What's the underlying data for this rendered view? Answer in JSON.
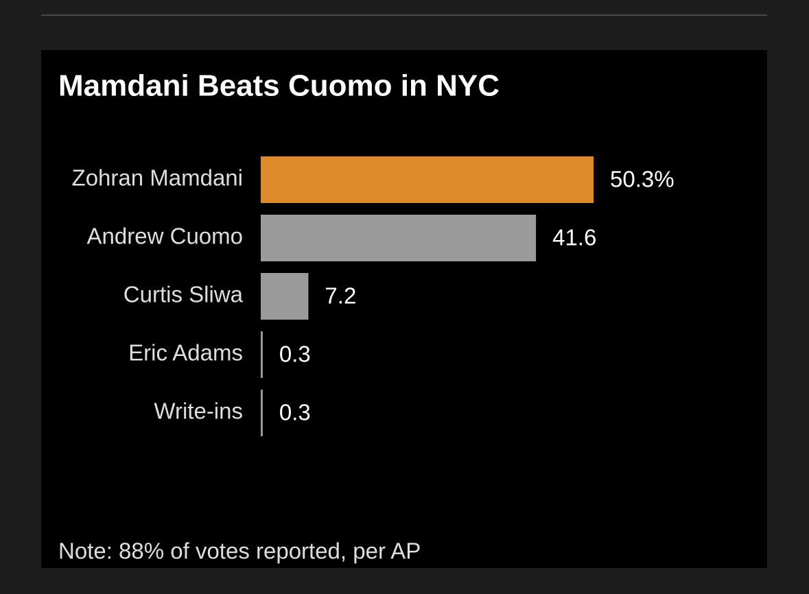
{
  "chart_data": {
    "type": "bar",
    "orientation": "horizontal",
    "title": "Mamdani Beats Cuomo in NYC",
    "categories": [
      "Zohran Mamdani",
      "Andrew Cuomo",
      "Curtis Sliwa",
      "Eric Adams",
      "Write-ins"
    ],
    "values": [
      50.3,
      41.6,
      7.2,
      0.3,
      0.3
    ],
    "value_labels": [
      "50.3%",
      "41.6",
      "7.2",
      "0.3",
      "0.3"
    ],
    "colors": [
      "#dc8a2a",
      "#9b9b9b",
      "#9b9b9b",
      "#9b9b9b",
      "#9b9b9b"
    ],
    "note": "Note: 88% of votes reported, per AP"
  }
}
